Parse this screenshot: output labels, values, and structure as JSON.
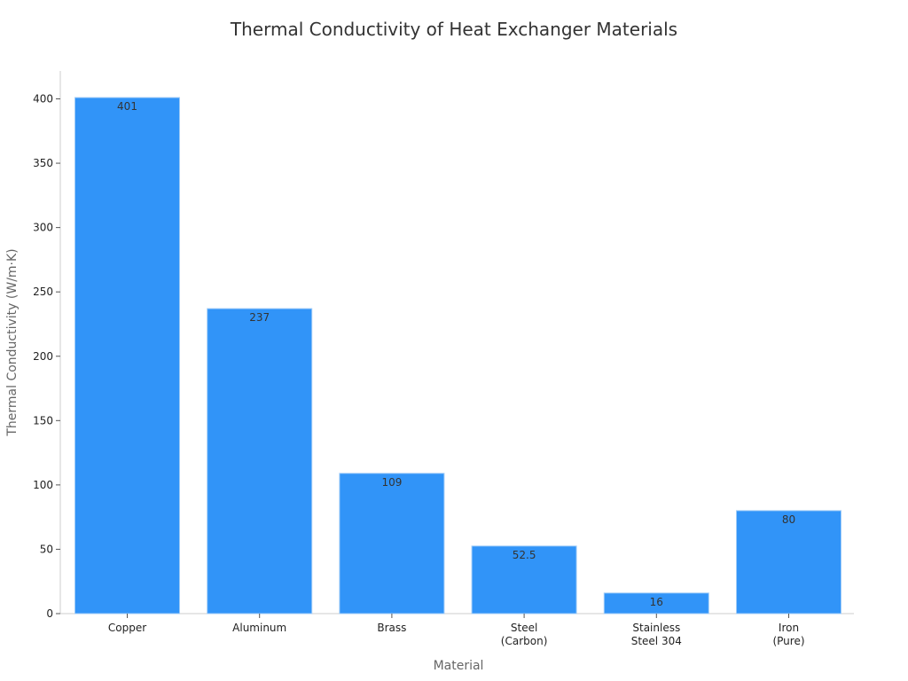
{
  "chart_data": {
    "type": "bar",
    "title": "Thermal Conductivity of Heat Exchanger Materials",
    "xlabel": "Material",
    "ylabel": "Thermal Conductivity (W/m·K)",
    "categories": [
      [
        "Copper"
      ],
      [
        "Aluminum"
      ],
      [
        "Brass"
      ],
      [
        "Steel",
        "(Carbon)"
      ],
      [
        "Stainless",
        "Steel 304"
      ],
      [
        "Iron",
        "(Pure)"
      ]
    ],
    "values": [
      401,
      237,
      109,
      52.5,
      16,
      80
    ],
    "data_labels": [
      "401",
      "237",
      "109",
      "52.5",
      "16",
      "80"
    ],
    "ylim": [
      0,
      420
    ],
    "yticks": [
      0,
      50,
      100,
      150,
      200,
      250,
      300,
      350,
      400
    ],
    "grid": false,
    "legend": "none",
    "bar_color": "#3194f8",
    "bar_edge_color": "#9fcbf7"
  }
}
